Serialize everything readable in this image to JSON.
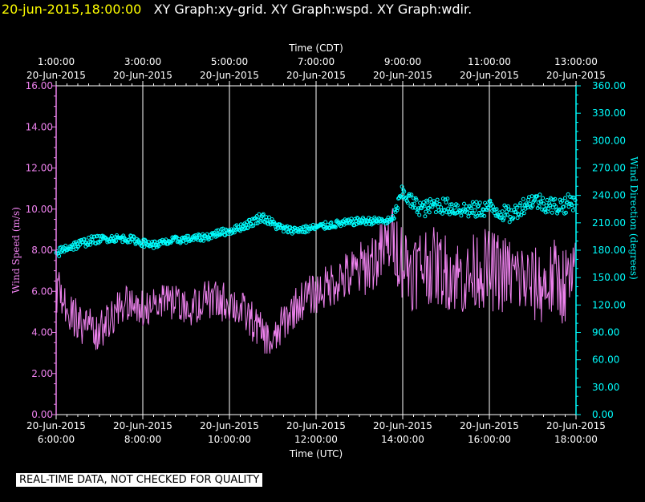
{
  "header": {
    "timestamp": "20-jun-2015,18:00:00",
    "graph_titles": "XY Graph:xy-grid.  XY Graph:wspd.  XY Graph:wdir."
  },
  "footer_note": "REAL-TIME DATA, NOT CHECKED FOR QUALITY",
  "colors": {
    "speed": "#ee82ee",
    "direction": "#00ffff",
    "axis_left": "#ee82ee",
    "axis_right": "#00ffff",
    "grid": "#ffffff",
    "text": "#ffffff"
  },
  "chart_data": {
    "type": "line",
    "top_axis": {
      "title": "Time (CDT)",
      "tick_labels": [
        [
          "1:00:00",
          "20-Jun-2015"
        ],
        [
          "3:00:00",
          "20-Jun-2015"
        ],
        [
          "5:00:00",
          "20-Jun-2015"
        ],
        [
          "7:00:00",
          "20-Jun-2015"
        ],
        [
          "9:00:00",
          "20-Jun-2015"
        ],
        [
          "11:00:00",
          "20-Jun-2015"
        ],
        [
          "13:00:00",
          "20-Jun-2015"
        ]
      ]
    },
    "bottom_axis": {
      "title": "Time (UTC)",
      "tick_labels": [
        [
          "20-Jun-2015",
          "6:00:00"
        ],
        [
          "20-Jun-2015",
          "8:00:00"
        ],
        [
          "20-Jun-2015",
          "10:00:00"
        ],
        [
          "20-Jun-2015",
          "12:00:00"
        ],
        [
          "20-Jun-2015",
          "14:00:00"
        ],
        [
          "20-Jun-2015",
          "16:00:00"
        ],
        [
          "20-Jun-2015",
          "18:00:00"
        ]
      ]
    },
    "x_range_utc_hours": [
      6,
      18
    ],
    "x_major_step_hours": 2,
    "left_axis": {
      "title": "Wind Speed (m/s)",
      "ylim": [
        0,
        16
      ],
      "tick_labels": [
        "0.00",
        "2.00",
        "4.00",
        "6.00",
        "8.00",
        "10.00",
        "12.00",
        "14.00",
        "16.00"
      ]
    },
    "right_axis": {
      "title": "Wind Direction (degrees)",
      "ylim": [
        0,
        360
      ],
      "tick_labels": [
        "0.00",
        "30.00",
        "60.00",
        "90.00",
        "120.00",
        "150.00",
        "180.00",
        "210.00",
        "240.00",
        "270.00",
        "300.00",
        "330.00",
        "360.00"
      ]
    },
    "grid": "vertical",
    "series": [
      {
        "style": "line",
        "axis": "left",
        "x": [
          6.0,
          6.25,
          6.5,
          6.75,
          7.0,
          7.25,
          7.5,
          7.75,
          8.0,
          8.25,
          8.5,
          8.75,
          9.0,
          9.25,
          9.5,
          9.75,
          10.0,
          10.25,
          10.5,
          10.75,
          11.0,
          11.25,
          11.5,
          11.75,
          12.0,
          12.25,
          12.5,
          12.75,
          13.0,
          13.25,
          13.5,
          13.75,
          14.0,
          14.25,
          14.5,
          14.75,
          15.0,
          15.25,
          15.5,
          15.75,
          16.0,
          16.25,
          16.5,
          16.75,
          17.0,
          17.25,
          17.5,
          17.75,
          18.0
        ],
        "values": [
          6.0,
          5.2,
          4.6,
          4.2,
          4.1,
          4.6,
          5.3,
          5.4,
          5.2,
          5.3,
          5.5,
          5.4,
          5.1,
          5.3,
          5.6,
          5.5,
          5.5,
          5.1,
          4.6,
          4.0,
          3.4,
          4.5,
          5.2,
          5.7,
          5.9,
          6.2,
          6.6,
          6.7,
          7.0,
          7.4,
          7.8,
          8.6,
          7.5,
          7.0,
          7.4,
          7.2,
          7.0,
          6.8,
          6.5,
          7.2,
          7.0,
          6.9,
          6.8,
          6.6,
          6.3,
          6.2,
          6.6,
          6.3,
          6.6
        ],
        "amplitude": [
          1.2,
          1.1,
          1.0,
          1.0,
          1.0,
          0.9,
          0.9,
          0.9,
          0.9,
          0.9,
          0.9,
          0.9,
          0.9,
          0.9,
          1.0,
          1.0,
          1.0,
          1.0,
          1.0,
          0.9,
          0.9,
          1.0,
          1.0,
          1.0,
          1.0,
          1.1,
          1.2,
          1.3,
          1.4,
          1.5,
          1.6,
          1.6,
          2.0,
          2.0,
          2.0,
          1.9,
          1.9,
          1.9,
          1.9,
          2.0,
          2.0,
          2.0,
          1.9,
          1.9,
          1.9,
          1.9,
          2.0,
          2.0,
          1.9
        ]
      },
      {
        "style": "markers",
        "axis": "right",
        "x": [
          6.0,
          6.25,
          6.5,
          6.75,
          7.0,
          7.25,
          7.5,
          7.75,
          8.0,
          8.25,
          8.5,
          8.75,
          9.0,
          9.25,
          9.5,
          9.75,
          10.0,
          10.25,
          10.5,
          10.75,
          11.0,
          11.25,
          11.5,
          11.75,
          12.0,
          12.25,
          12.5,
          12.75,
          13.0,
          13.25,
          13.5,
          13.75,
          14.0,
          14.25,
          14.5,
          14.75,
          15.0,
          15.25,
          15.5,
          15.75,
          16.0,
          16.25,
          16.5,
          16.75,
          17.0,
          17.25,
          17.5,
          17.75,
          18.0
        ],
        "values": [
          176,
          183,
          186,
          190,
          192,
          193,
          193,
          192,
          188,
          186,
          188,
          191,
          192,
          193,
          195,
          199,
          201,
          205,
          210,
          217,
          209,
          203,
          202,
          203,
          205,
          207,
          209,
          210,
          212,
          212,
          212,
          212,
          244,
          230,
          225,
          230,
          228,
          226,
          224,
          224,
          227,
          222,
          218,
          228,
          235,
          232,
          228,
          230,
          235
        ],
        "amplitude": [
          5,
          5,
          5,
          5,
          4,
          4,
          4,
          4,
          4,
          4,
          4,
          4,
          4,
          4,
          4,
          4,
          4,
          4,
          5,
          5,
          5,
          4,
          4,
          4,
          4,
          4,
          4,
          4,
          4,
          4,
          4,
          4,
          8,
          9,
          9,
          9,
          9,
          9,
          9,
          9,
          9,
          9,
          9,
          9,
          9,
          10,
          10,
          10,
          10
        ]
      }
    ]
  }
}
